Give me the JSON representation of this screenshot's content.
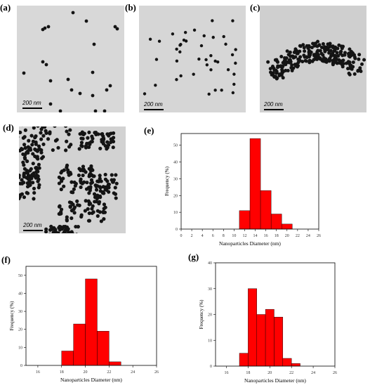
{
  "figure": {
    "labels": {
      "a": "(a)",
      "b": "(b)",
      "c": "(c)",
      "d": "(d)",
      "e": "(e)",
      "f": "(f)",
      "g": "(g)"
    },
    "scale_text": "200 nm"
  },
  "chart_data": [
    {
      "id": "e",
      "type": "bar",
      "xlabel": "Nanoparticles Diameter (nm)",
      "ylabel": "Frequency (%)",
      "xlim": [
        0,
        26
      ],
      "ylim": [
        0,
        57
      ],
      "xticks": [
        0,
        2,
        4,
        6,
        8,
        10,
        12,
        14,
        16,
        18,
        20,
        22,
        24,
        26
      ],
      "yticks": [
        0,
        10,
        20,
        30,
        40,
        50
      ],
      "bar_width": 2,
      "x": [
        12,
        14,
        16,
        18,
        20
      ],
      "values": [
        11,
        54,
        23,
        9,
        3
      ],
      "color": "#ff0000"
    },
    {
      "id": "f",
      "type": "bar",
      "xlabel": "Nanoparticles Diameter (nm)",
      "ylabel": "Frequency (%)",
      "xlim": [
        15,
        26
      ],
      "ylim": [
        0,
        55
      ],
      "xticks": [
        16,
        18,
        20,
        22,
        24,
        26
      ],
      "yticks": [
        0,
        10,
        20,
        30,
        40,
        50
      ],
      "bar_width": 1,
      "x": [
        18.5,
        19.5,
        20.5,
        21.5,
        22.5
      ],
      "values": [
        8,
        23,
        48,
        19,
        2
      ],
      "color": "#ff0000"
    },
    {
      "id": "g",
      "type": "bar",
      "xlabel": "Nanoparticles Diameter (nm)",
      "ylabel": "Frequency (%)",
      "xlim": [
        15,
        26
      ],
      "ylim": [
        0,
        40
      ],
      "xticks": [
        16,
        18,
        20,
        22,
        24,
        26
      ],
      "yticks": [
        0,
        10,
        20,
        30,
        40
      ],
      "bar_width": 0.8,
      "x": [
        17.6,
        18.4,
        19.2,
        20.0,
        20.8,
        21.6,
        22.4,
        23.2
      ],
      "values": [
        5,
        30,
        20,
        22,
        19,
        3,
        1,
        0
      ],
      "color": "#ff0000"
    }
  ]
}
